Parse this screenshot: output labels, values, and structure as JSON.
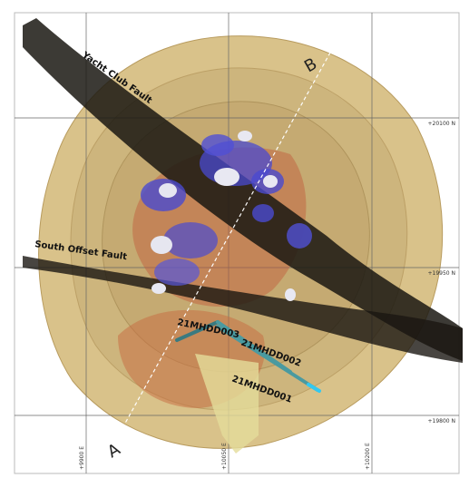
{
  "labels": {
    "faults": [
      "Yacht Club Fault",
      "South Offset Fault"
    ],
    "section": [
      "B",
      "A"
    ],
    "drillholes": [
      "21MHDD003",
      "21MHDD002",
      "21MHDD001"
    ]
  },
  "grid": {
    "northings": [
      "+20100 N",
      "+19950 N",
      "+19800 N"
    ],
    "eastings": [
      "+9900 E",
      "+10050 E",
      "+10200 E"
    ]
  }
}
